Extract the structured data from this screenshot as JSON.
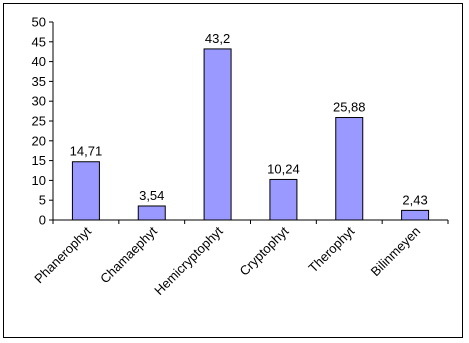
{
  "chart_data": {
    "type": "bar",
    "categories": [
      "Phanerophyt",
      "Chamaephyt",
      "Hemicryptophyt",
      "Cryptophyt",
      "Therophyt",
      "Bilinmeyen"
    ],
    "values": [
      14.71,
      3.54,
      43.2,
      10.24,
      25.88,
      2.43
    ],
    "data_labels": [
      "14,71",
      "3,54",
      "43,2",
      "10,24",
      "25,88",
      "2,43"
    ],
    "ylim": [
      0,
      50
    ],
    "yticks": [
      0,
      5,
      10,
      15,
      20,
      25,
      30,
      35,
      40,
      45,
      50
    ],
    "ytick_labels": [
      "0",
      "5",
      "10",
      "15",
      "20",
      "25",
      "30",
      "35",
      "40",
      "45",
      "50"
    ],
    "bar_color": "#9999ff",
    "bar_stroke": "#000000",
    "grid": false,
    "legend": "none",
    "title": "",
    "xlabel": "",
    "ylabel": ""
  }
}
